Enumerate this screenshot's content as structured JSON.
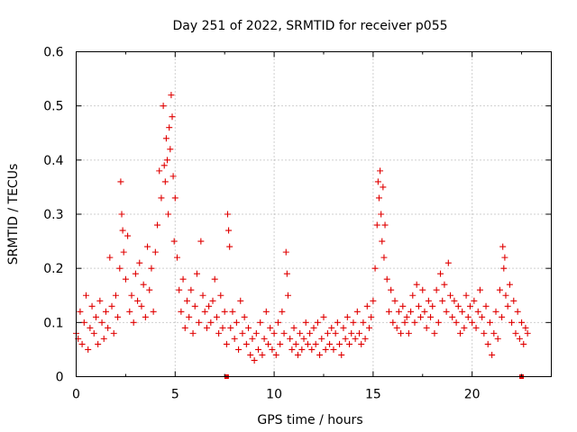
{
  "chart_data": {
    "type": "scatter",
    "title": "Day 251 of 2022, SRMTID for receiver p055",
    "xlabel": "GPS time / hours",
    "ylabel": "SRMTID / TECUs",
    "xlim": [
      0,
      24
    ],
    "ylim": [
      0,
      0.6
    ],
    "xticks": [
      0,
      5,
      10,
      15,
      20
    ],
    "xtick_labels": [
      "0",
      "5",
      "10",
      "15",
      "20"
    ],
    "yticks": [
      0,
      0.1,
      0.2,
      0.3,
      0.4,
      0.5,
      0.6
    ],
    "ytick_labels": [
      "0",
      "0.1",
      "0.2",
      "0.3",
      "0.4",
      "0.5",
      "0.6"
    ],
    "grid": true,
    "marker": "+",
    "color": "#e00000",
    "series": [
      {
        "name": "SRMTID",
        "points": [
          [
            0.0,
            0.08
          ],
          [
            0.1,
            0.07
          ],
          [
            0.2,
            0.12
          ],
          [
            0.3,
            0.06
          ],
          [
            0.4,
            0.1
          ],
          [
            0.5,
            0.15
          ],
          [
            0.6,
            0.05
          ],
          [
            0.7,
            0.09
          ],
          [
            0.8,
            0.13
          ],
          [
            0.9,
            0.08
          ],
          [
            1.0,
            0.11
          ],
          [
            1.1,
            0.06
          ],
          [
            1.2,
            0.14
          ],
          [
            1.3,
            0.1
          ],
          [
            1.4,
            0.07
          ],
          [
            1.5,
            0.12
          ],
          [
            1.6,
            0.09
          ],
          [
            1.7,
            0.22
          ],
          [
            1.8,
            0.13
          ],
          [
            1.9,
            0.08
          ],
          [
            2.0,
            0.15
          ],
          [
            2.1,
            0.11
          ],
          [
            2.2,
            0.2
          ],
          [
            2.25,
            0.36
          ],
          [
            2.3,
            0.3
          ],
          [
            2.35,
            0.27
          ],
          [
            2.4,
            0.23
          ],
          [
            2.5,
            0.18
          ],
          [
            2.6,
            0.26
          ],
          [
            2.7,
            0.12
          ],
          [
            2.8,
            0.15
          ],
          [
            2.9,
            0.1
          ],
          [
            3.0,
            0.19
          ],
          [
            3.1,
            0.14
          ],
          [
            3.2,
            0.21
          ],
          [
            3.3,
            0.13
          ],
          [
            3.4,
            0.17
          ],
          [
            3.5,
            0.11
          ],
          [
            3.6,
            0.24
          ],
          [
            3.7,
            0.16
          ],
          [
            3.8,
            0.2
          ],
          [
            3.9,
            0.12
          ],
          [
            4.0,
            0.23
          ],
          [
            4.1,
            0.28
          ],
          [
            4.2,
            0.38
          ],
          [
            4.3,
            0.33
          ],
          [
            4.4,
            0.5
          ],
          [
            4.45,
            0.39
          ],
          [
            4.5,
            0.36
          ],
          [
            4.55,
            0.44
          ],
          [
            4.6,
            0.4
          ],
          [
            4.65,
            0.3
          ],
          [
            4.7,
            0.46
          ],
          [
            4.75,
            0.42
          ],
          [
            4.8,
            0.52
          ],
          [
            4.85,
            0.48
          ],
          [
            4.9,
            0.37
          ],
          [
            4.95,
            0.25
          ],
          [
            5.0,
            0.33
          ],
          [
            5.1,
            0.22
          ],
          [
            5.2,
            0.16
          ],
          [
            5.3,
            0.12
          ],
          [
            5.4,
            0.18
          ],
          [
            5.5,
            0.09
          ],
          [
            5.6,
            0.14
          ],
          [
            5.7,
            0.11
          ],
          [
            5.8,
            0.16
          ],
          [
            5.9,
            0.08
          ],
          [
            6.0,
            0.13
          ],
          [
            6.1,
            0.19
          ],
          [
            6.2,
            0.1
          ],
          [
            6.3,
            0.25
          ],
          [
            6.4,
            0.15
          ],
          [
            6.5,
            0.12
          ],
          [
            6.6,
            0.09
          ],
          [
            6.7,
            0.13
          ],
          [
            6.8,
            0.1
          ],
          [
            6.9,
            0.14
          ],
          [
            7.0,
            0.18
          ],
          [
            7.1,
            0.11
          ],
          [
            7.2,
            0.08
          ],
          [
            7.3,
            0.15
          ],
          [
            7.4,
            0.09
          ],
          [
            7.5,
            0.12
          ],
          [
            7.6,
            0.06
          ],
          [
            7.65,
            0.3
          ],
          [
            7.7,
            0.27
          ],
          [
            7.75,
            0.24
          ],
          [
            7.8,
            0.09
          ],
          [
            7.9,
            0.12
          ],
          [
            8.0,
            0.07
          ],
          [
            8.1,
            0.1
          ],
          [
            8.2,
            0.05
          ],
          [
            8.3,
            0.14
          ],
          [
            8.4,
            0.08
          ],
          [
            8.5,
            0.11
          ],
          [
            8.6,
            0.06
          ],
          [
            8.7,
            0.09
          ],
          [
            8.8,
            0.04
          ],
          [
            8.9,
            0.07
          ],
          [
            9.0,
            0.03
          ],
          [
            9.1,
            0.08
          ],
          [
            9.2,
            0.05
          ],
          [
            9.3,
            0.1
          ],
          [
            9.4,
            0.04
          ],
          [
            9.5,
            0.07
          ],
          [
            9.6,
            0.12
          ],
          [
            9.7,
            0.06
          ],
          [
            9.8,
            0.09
          ],
          [
            9.9,
            0.05
          ],
          [
            10.0,
            0.08
          ],
          [
            10.1,
            0.04
          ],
          [
            10.2,
            0.1
          ],
          [
            10.3,
            0.06
          ],
          [
            10.4,
            0.12
          ],
          [
            10.5,
            0.08
          ],
          [
            10.6,
            0.23
          ],
          [
            10.65,
            0.19
          ],
          [
            10.7,
            0.15
          ],
          [
            10.8,
            0.07
          ],
          [
            10.9,
            0.05
          ],
          [
            11.0,
            0.09
          ],
          [
            11.1,
            0.06
          ],
          [
            11.2,
            0.04
          ],
          [
            11.3,
            0.08
          ],
          [
            11.4,
            0.05
          ],
          [
            11.5,
            0.07
          ],
          [
            11.6,
            0.1
          ],
          [
            11.7,
            0.06
          ],
          [
            11.8,
            0.08
          ],
          [
            11.9,
            0.05
          ],
          [
            12.0,
            0.09
          ],
          [
            12.1,
            0.06
          ],
          [
            12.2,
            0.1
          ],
          [
            12.3,
            0.04
          ],
          [
            12.4,
            0.07
          ],
          [
            12.5,
            0.11
          ],
          [
            12.6,
            0.05
          ],
          [
            12.7,
            0.08
          ],
          [
            12.8,
            0.06
          ],
          [
            12.9,
            0.09
          ],
          [
            13.0,
            0.05
          ],
          [
            13.1,
            0.08
          ],
          [
            13.2,
            0.1
          ],
          [
            13.3,
            0.06
          ],
          [
            13.4,
            0.04
          ],
          [
            13.5,
            0.09
          ],
          [
            13.6,
            0.07
          ],
          [
            13.7,
            0.11
          ],
          [
            13.8,
            0.06
          ],
          [
            13.9,
            0.08
          ],
          [
            14.0,
            0.1
          ],
          [
            14.1,
            0.07
          ],
          [
            14.2,
            0.12
          ],
          [
            14.3,
            0.08
          ],
          [
            14.4,
            0.06
          ],
          [
            14.5,
            0.1
          ],
          [
            14.6,
            0.07
          ],
          [
            14.7,
            0.13
          ],
          [
            14.8,
            0.09
          ],
          [
            14.9,
            0.11
          ],
          [
            15.0,
            0.14
          ],
          [
            15.1,
            0.2
          ],
          [
            15.2,
            0.28
          ],
          [
            15.25,
            0.36
          ],
          [
            15.3,
            0.33
          ],
          [
            15.35,
            0.38
          ],
          [
            15.4,
            0.3
          ],
          [
            15.45,
            0.25
          ],
          [
            15.5,
            0.35
          ],
          [
            15.55,
            0.22
          ],
          [
            15.6,
            0.28
          ],
          [
            15.7,
            0.18
          ],
          [
            15.8,
            0.12
          ],
          [
            15.9,
            0.16
          ],
          [
            16.0,
            0.1
          ],
          [
            16.1,
            0.14
          ],
          [
            16.2,
            0.09
          ],
          [
            16.3,
            0.12
          ],
          [
            16.4,
            0.08
          ],
          [
            16.5,
            0.13
          ],
          [
            16.6,
            0.1
          ],
          [
            16.7,
            0.11
          ],
          [
            16.8,
            0.08
          ],
          [
            16.9,
            0.12
          ],
          [
            17.0,
            0.15
          ],
          [
            17.1,
            0.1
          ],
          [
            17.2,
            0.17
          ],
          [
            17.3,
            0.13
          ],
          [
            17.4,
            0.11
          ],
          [
            17.5,
            0.16
          ],
          [
            17.6,
            0.12
          ],
          [
            17.7,
            0.09
          ],
          [
            17.8,
            0.14
          ],
          [
            17.9,
            0.11
          ],
          [
            18.0,
            0.13
          ],
          [
            18.1,
            0.08
          ],
          [
            18.2,
            0.16
          ],
          [
            18.3,
            0.1
          ],
          [
            18.4,
            0.19
          ],
          [
            18.5,
            0.14
          ],
          [
            18.6,
            0.17
          ],
          [
            18.7,
            0.12
          ],
          [
            18.8,
            0.21
          ],
          [
            18.9,
            0.15
          ],
          [
            19.0,
            0.11
          ],
          [
            19.1,
            0.14
          ],
          [
            19.2,
            0.1
          ],
          [
            19.3,
            0.13
          ],
          [
            19.4,
            0.08
          ],
          [
            19.5,
            0.12
          ],
          [
            19.6,
            0.09
          ],
          [
            19.7,
            0.15
          ],
          [
            19.8,
            0.11
          ],
          [
            19.9,
            0.13
          ],
          [
            20.0,
            0.1
          ],
          [
            20.1,
            0.14
          ],
          [
            20.2,
            0.09
          ],
          [
            20.3,
            0.12
          ],
          [
            20.4,
            0.16
          ],
          [
            20.5,
            0.11
          ],
          [
            20.6,
            0.08
          ],
          [
            20.7,
            0.13
          ],
          [
            20.8,
            0.06
          ],
          [
            20.9,
            0.1
          ],
          [
            21.0,
            0.04
          ],
          [
            21.1,
            0.08
          ],
          [
            21.2,
            0.12
          ],
          [
            21.3,
            0.07
          ],
          [
            21.4,
            0.16
          ],
          [
            21.5,
            0.11
          ],
          [
            21.55,
            0.24
          ],
          [
            21.6,
            0.2
          ],
          [
            21.65,
            0.22
          ],
          [
            21.7,
            0.15
          ],
          [
            21.8,
            0.13
          ],
          [
            21.9,
            0.17
          ],
          [
            22.0,
            0.1
          ],
          [
            22.1,
            0.14
          ],
          [
            22.2,
            0.08
          ],
          [
            22.3,
            0.12
          ],
          [
            22.4,
            0.07
          ],
          [
            22.5,
            0.1
          ],
          [
            22.6,
            0.06
          ],
          [
            22.7,
            0.09
          ],
          [
            22.8,
            0.08
          ]
        ]
      }
    ],
    "markers_on_axis": [
      7.6,
      22.5
    ]
  }
}
